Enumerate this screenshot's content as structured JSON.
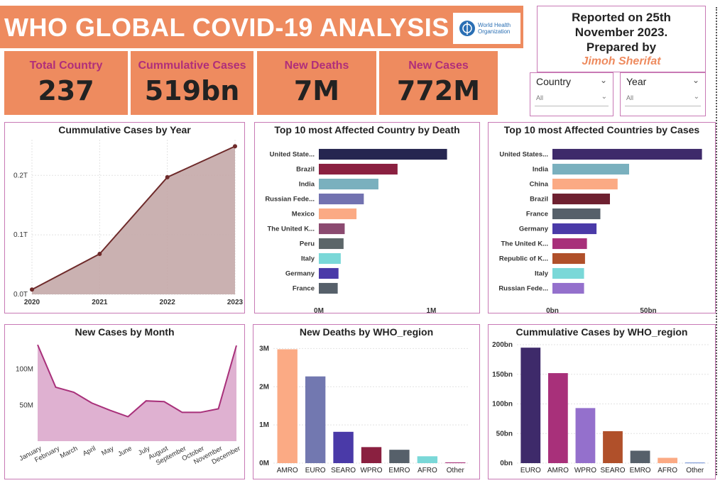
{
  "header": {
    "title": "WHO GLOBAL COVID-19 ANALYSIS",
    "logo_text_1": "World Health",
    "logo_text_2": "Organization"
  },
  "report": {
    "line1": "Reported on 25th",
    "line2": "November 2023.",
    "line3": "Prepared by",
    "author": "Jimoh Sherifat"
  },
  "kpis": [
    {
      "label": "Total Country",
      "value": "237"
    },
    {
      "label": "Cummulative Cases",
      "value": "519bn"
    },
    {
      "label": "New Deaths",
      "value": "7M"
    },
    {
      "label": "New Cases",
      "value": "772M"
    }
  ],
  "slicers": [
    {
      "title": "Country",
      "value": "All"
    },
    {
      "title": "Year",
      "value": "All"
    }
  ],
  "colors": {
    "accent": "#ee8b5f",
    "border": "#c879b5",
    "kpi_label": "#b02e7a"
  },
  "chart_data": [
    {
      "id": "cum_by_year",
      "type": "area",
      "title": "Cummulative Cases by Year",
      "x": [
        "2020",
        "2021",
        "2022",
        "2023"
      ],
      "values": [
        0.008,
        0.068,
        0.197,
        0.249
      ],
      "ylim": [
        0,
        0.26
      ],
      "yticks": [
        0,
        0.1,
        0.2
      ],
      "ytick_labels": [
        "0.0T",
        "0.1T",
        "0.2T"
      ],
      "color": "#6e2a2a",
      "fill": "#c4a8a8",
      "grid": true
    },
    {
      "id": "deaths_by_country",
      "type": "bar",
      "orientation": "horizontal",
      "title": "Top 10 most Affected Country by Death",
      "categories": [
        "United State...",
        "Brazil",
        "India",
        "Russian Fede...",
        "Mexico",
        "The United K...",
        "Peru",
        "Italy",
        "Germany",
        "France"
      ],
      "values": [
        1140000,
        700000,
        530000,
        400000,
        335000,
        230000,
        220000,
        195000,
        175000,
        168000
      ],
      "colors": [
        "#262650",
        "#8a2040",
        "#7ab0be",
        "#7272b0",
        "#fbaa84",
        "#8b4a70",
        "#5c6669",
        "#7ad8d8",
        "#4a3aa8",
        "#56606a"
      ],
      "xlim": [
        0,
        1250000
      ],
      "xticks": [
        0,
        1000000
      ],
      "xtick_labels": [
        "0M",
        "1M"
      ]
    },
    {
      "id": "cases_by_country",
      "type": "bar",
      "orientation": "horizontal",
      "title": "Top 10 most Affected Countries by Cases",
      "categories": [
        "United States...",
        "India",
        "China",
        "Brazil",
        "France",
        "Germany",
        "The United K...",
        "Republic of K...",
        "Italy",
        "Russian Fede..."
      ],
      "values": [
        78,
        40,
        34,
        30,
        25,
        23,
        18,
        17,
        16.5,
        16.5
      ],
      "colors": [
        "#3e2a6a",
        "#7ab0be",
        "#fbaa84",
        "#6e2030",
        "#56606a",
        "#4a3aa8",
        "#a8307a",
        "#b0502a",
        "#7ad8d8",
        "#9470cc"
      ],
      "xlim": [
        0,
        80
      ],
      "xticks": [
        0,
        50
      ],
      "xtick_labels": [
        "0bn",
        "50bn"
      ]
    },
    {
      "id": "new_cases_by_month",
      "type": "area",
      "title": "New Cases by Month",
      "x": [
        "January",
        "February",
        "March",
        "April",
        "May",
        "June",
        "July",
        "August",
        "September",
        "October",
        "November",
        "December"
      ],
      "values": [
        134,
        75,
        68,
        53,
        43,
        34,
        56,
        55,
        40,
        40,
        45,
        133
      ],
      "ylim": [
        0,
        140
      ],
      "yticks": [
        50,
        100
      ],
      "ytick_labels": [
        "50M",
        "100M"
      ],
      "color": "#a8307a",
      "fill": "#dba8cc"
    },
    {
      "id": "deaths_by_region",
      "type": "bar",
      "title": "New Deaths by WHO_region",
      "categories": [
        "AMRO",
        "EURO",
        "SEARO",
        "WPRO",
        "EMRO",
        "AFRO",
        "Other"
      ],
      "values": [
        2.98,
        2.27,
        0.82,
        0.42,
        0.35,
        0.18,
        0.02
      ],
      "colors": [
        "#fbaa84",
        "#7278b0",
        "#4a3aa8",
        "#8a2040",
        "#56606a",
        "#7ad8d8",
        "#a8307a"
      ],
      "ylim": [
        0,
        3.1
      ],
      "yticks": [
        0,
        1,
        2,
        3
      ],
      "ytick_labels": [
        "0M",
        "1M",
        "2M",
        "3M"
      ]
    },
    {
      "id": "cum_by_region",
      "type": "bar",
      "title": "Cummulative Cases by WHO_region",
      "categories": [
        "EURO",
        "AMRO",
        "WPRO",
        "SEARO",
        "EMRO",
        "AFRO",
        "Other"
      ],
      "values": [
        195,
        152,
        93,
        54,
        21,
        9,
        1
      ],
      "colors": [
        "#3e2a6a",
        "#a8307a",
        "#9470cc",
        "#b0502a",
        "#56606a",
        "#fbaa84",
        "#6a8ad0"
      ],
      "ylim": [
        0,
        200
      ],
      "yticks": [
        0,
        50,
        100,
        150,
        200
      ],
      "ytick_labels": [
        "0bn",
        "50bn",
        "100bn",
        "150bn",
        "200bn"
      ]
    }
  ]
}
